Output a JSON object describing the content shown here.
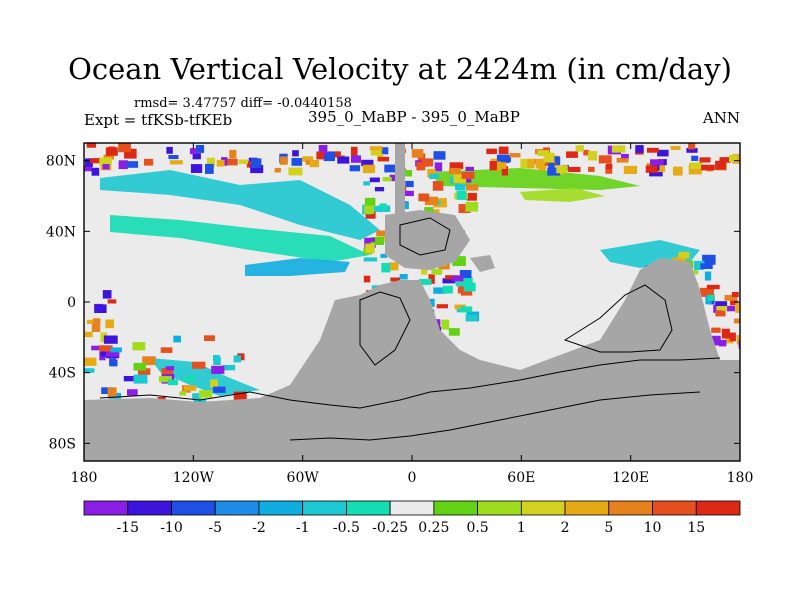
{
  "chart_data": {
    "type": "heatmap",
    "title": "Ocean Vertical Velocity at 2424m (in cm/day)",
    "stats_text": "rmsd= 3.47757 diff= -0.0440158",
    "left_label": "Expt = tfKSb-tfKEb",
    "center_label": "395_0_MaBP - 395_0_MaBP",
    "right_label": "ANN",
    "x_ticks": [
      {
        "value": -180,
        "label": "180"
      },
      {
        "value": -120,
        "label": "120W"
      },
      {
        "value": -60,
        "label": "60W"
      },
      {
        "value": 0,
        "label": "0"
      },
      {
        "value": 60,
        "label": "60E"
      },
      {
        "value": 120,
        "label": "120E"
      },
      {
        "value": 180,
        "label": "180"
      }
    ],
    "y_ticks": [
      {
        "value": 80,
        "label": "80N"
      },
      {
        "value": 40,
        "label": "40N"
      },
      {
        "value": 0,
        "label": "0"
      },
      {
        "value": -40,
        "label": "40S"
      },
      {
        "value": -80,
        "label": "80S"
      }
    ],
    "xlim": [
      -180,
      180
    ],
    "ylim": [
      -90,
      90
    ],
    "colorbar": {
      "labels": [
        "-15",
        "-10",
        "-5",
        "-2",
        "-1",
        "-0.5",
        "-0.25",
        "0.25",
        "0.5",
        "1",
        "2",
        "5",
        "10",
        "15"
      ],
      "colors": [
        "#8a1ee6",
        "#3c14dc",
        "#1e50e6",
        "#1e8ce6",
        "#10aee0",
        "#1ec8d2",
        "#14dcb4",
        "#ebebeb",
        "#64d214",
        "#a0dc1e",
        "#d2d21e",
        "#e6aa14",
        "#e6821e",
        "#e6501e",
        "#dc2814"
      ]
    },
    "land_color": "#a6a6a6",
    "ocean_zero_color": "#ebebeb"
  }
}
